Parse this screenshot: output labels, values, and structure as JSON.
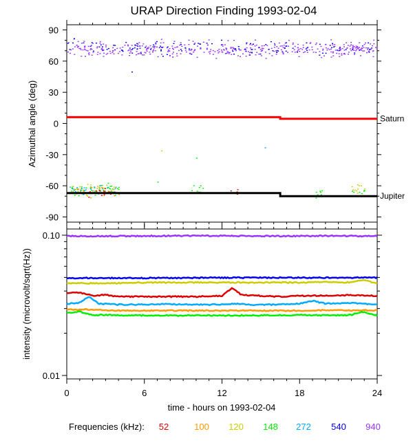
{
  "chart_data": [
    {
      "type": "scatter",
      "title": "URAP Direction Finding  1993-02-04",
      "ylabel": "Azimuthal angle (deg)",
      "xlim": [
        0,
        24
      ],
      "ylim": [
        -95,
        95
      ],
      "yticks": [
        -90,
        -60,
        -30,
        0,
        30,
        60,
        90
      ],
      "grid": false,
      "reference_lines": [
        {
          "name": "Saturn",
          "color": "#ff0000",
          "segments": [
            [
              0,
              16.5,
              6
            ],
            [
              16.5,
              24,
              4.5
            ]
          ]
        },
        {
          "name": "Jupiter",
          "color": "#000000",
          "segments": [
            [
              0,
              16.5,
              -67
            ],
            [
              16.5,
              24,
              -70
            ]
          ]
        }
      ],
      "point_clusters": [
        {
          "name": "940",
          "color": "#9933ff",
          "x_range": [
            0,
            24
          ],
          "y_center": 72,
          "y_spread": 8,
          "count": 420
        },
        {
          "name": "540",
          "color": "#0000ee",
          "x_range": [
            0,
            24
          ],
          "y_center": 73,
          "y_spread": 7,
          "count": 120
        },
        {
          "name": "148",
          "color": "#00ee00",
          "x_range": [
            0.2,
            4
          ],
          "y_center": -64,
          "y_spread": 6,
          "count": 45
        },
        {
          "name": "272",
          "color": "#00aaff",
          "x_range": [
            0.2,
            4
          ],
          "y_center": -64,
          "y_spread": 6,
          "count": 30
        },
        {
          "name": "120",
          "color": "#cccc00",
          "x_range": [
            0.2,
            4
          ],
          "y_center": -63,
          "y_spread": 6,
          "count": 25
        },
        {
          "name": "100",
          "color": "#ff9900",
          "x_range": [
            0.2,
            4
          ],
          "y_center": -65,
          "y_spread": 6,
          "count": 20
        },
        {
          "name": "52",
          "color": "#dd0000",
          "x_range": [
            1.5,
            4
          ],
          "y_center": -66,
          "y_spread": 4,
          "count": 18
        },
        {
          "name": "148",
          "color": "#00ee00",
          "x_range": [
            9.5,
            10.5
          ],
          "y_center": -63,
          "y_spread": 5,
          "count": 8
        },
        {
          "name": "52",
          "color": "#dd0000",
          "x_range": [
            12.5,
            13.5
          ],
          "y_center": -66,
          "y_spread": 3,
          "count": 6
        },
        {
          "name": "148",
          "color": "#00ee00",
          "x_range": [
            18.5,
            20
          ],
          "y_center": -67,
          "y_spread": 5,
          "count": 8
        },
        {
          "name": "120",
          "color": "#cccc00",
          "x_range": [
            22,
            23
          ],
          "y_center": -64,
          "y_spread": 6,
          "count": 10
        },
        {
          "name": "148",
          "color": "#00ee00",
          "x_range": [
            22,
            23
          ],
          "y_center": -67,
          "y_spread": 5,
          "count": 8
        }
      ],
      "stray_points": [
        {
          "x": 7.3,
          "y": -26,
          "color": "#cccc00"
        },
        {
          "x": 10.0,
          "y": -33,
          "color": "#00ee00"
        },
        {
          "x": 15.3,
          "y": -23,
          "color": "#00aaff"
        },
        {
          "x": 7.0,
          "y": -56,
          "color": "#00ee00"
        },
        {
          "x": 5.0,
          "y": 50,
          "color": "#0000ee"
        }
      ]
    },
    {
      "type": "line",
      "ylabel": "intensity (microvolt/sqrt(Hz))",
      "xlabel": "time - hours on 1993-02-04",
      "xlim": [
        0,
        24
      ],
      "xticks": [
        0,
        6,
        12,
        18,
        24
      ],
      "yscale": "log",
      "ylim": [
        0.01,
        0.1
      ],
      "yticks": [
        0.01,
        0.1
      ],
      "ytick_labels": [
        "0.01",
        "0.10"
      ],
      "series": [
        {
          "name": "52",
          "color": "#dd0000",
          "x": [
            0,
            1,
            2,
            3,
            4,
            6,
            8,
            10,
            12,
            12.8,
            13.5,
            15,
            16.5,
            18,
            20,
            22,
            24
          ],
          "values": [
            0.0385,
            0.039,
            0.037,
            0.0375,
            0.0365,
            0.0365,
            0.0365,
            0.0365,
            0.037,
            0.042,
            0.0375,
            0.037,
            0.0365,
            0.037,
            0.037,
            0.0375,
            0.037
          ]
        },
        {
          "name": "100",
          "color": "#ff9900",
          "x": [
            0,
            2,
            4,
            6,
            8,
            10,
            12,
            14,
            16,
            18,
            20,
            22,
            24
          ],
          "values": [
            0.0295,
            0.0295,
            0.029,
            0.029,
            0.029,
            0.029,
            0.029,
            0.029,
            0.029,
            0.029,
            0.0292,
            0.029,
            0.0292
          ]
        },
        {
          "name": "120",
          "color": "#cccc00",
          "x": [
            0,
            2,
            4,
            6,
            8,
            10,
            12,
            14,
            16,
            18,
            20,
            22,
            22.8,
            24
          ],
          "values": [
            0.0455,
            0.0455,
            0.0455,
            0.046,
            0.046,
            0.046,
            0.046,
            0.046,
            0.046,
            0.046,
            0.0465,
            0.046,
            0.048,
            0.0455
          ]
        },
        {
          "name": "148",
          "color": "#00ee00",
          "x": [
            0,
            1,
            2,
            3,
            4,
            6,
            8,
            10,
            12,
            14,
            16,
            18,
            20,
            22,
            22.8,
            24
          ],
          "values": [
            0.028,
            0.0285,
            0.027,
            0.027,
            0.0268,
            0.0268,
            0.0268,
            0.0268,
            0.0268,
            0.0268,
            0.0268,
            0.027,
            0.0268,
            0.027,
            0.0285,
            0.0268
          ]
        },
        {
          "name": "272",
          "color": "#00aaff",
          "x": [
            0,
            1,
            1.7,
            2.5,
            4,
            6,
            8,
            10,
            12,
            13,
            14,
            16,
            18,
            19,
            20,
            22,
            24
          ],
          "values": [
            0.0325,
            0.033,
            0.0365,
            0.0325,
            0.032,
            0.032,
            0.0322,
            0.032,
            0.032,
            0.0325,
            0.032,
            0.032,
            0.0325,
            0.034,
            0.0325,
            0.0328,
            0.032
          ]
        },
        {
          "name": "540",
          "color": "#0000ee",
          "x": [
            0,
            4,
            8,
            12,
            16,
            20,
            24
          ],
          "values": [
            0.0495,
            0.0495,
            0.0495,
            0.0498,
            0.0498,
            0.0498,
            0.0498
          ]
        },
        {
          "name": "940",
          "color": "#9933ff",
          "x": [
            0,
            4,
            8,
            12,
            16,
            20,
            24
          ],
          "values": [
            0.0985,
            0.0985,
            0.099,
            0.099,
            0.0985,
            0.099,
            0.0985
          ]
        }
      ]
    }
  ],
  "legend": {
    "label": "Frequencies (kHz):",
    "items": [
      {
        "text": "52",
        "color": "#dd0000"
      },
      {
        "text": "100",
        "color": "#ff9900"
      },
      {
        "text": "120",
        "color": "#cccc00"
      },
      {
        "text": "148",
        "color": "#00ee00"
      },
      {
        "text": "272",
        "color": "#00aaff"
      },
      {
        "text": "540",
        "color": "#0000ee"
      },
      {
        "text": "940",
        "color": "#9933ff"
      }
    ]
  }
}
